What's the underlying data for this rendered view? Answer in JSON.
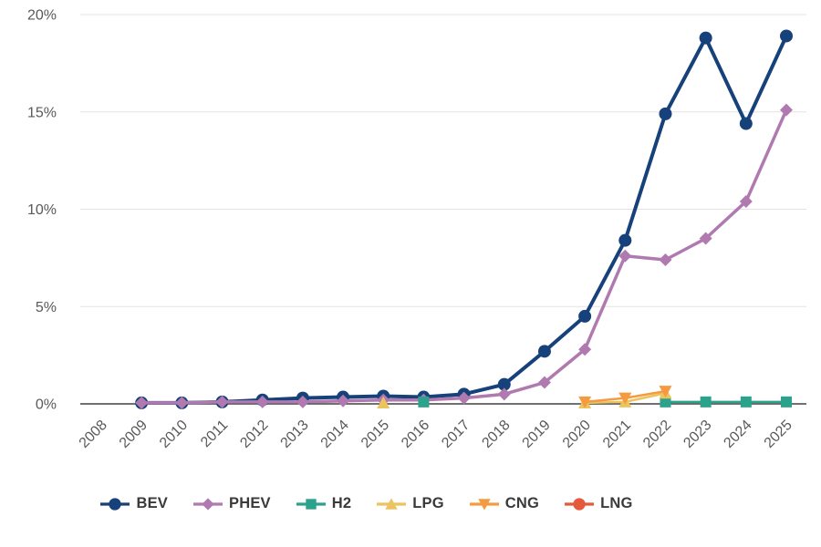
{
  "chart_data": {
    "type": "line",
    "title": "",
    "xlabel": "",
    "ylabel": "",
    "x_labels": [
      "2008",
      "2009",
      "2010",
      "2011",
      "2012",
      "2013",
      "2014",
      "2015",
      "2016",
      "2017",
      "2018",
      "2019",
      "2020",
      "2021",
      "2022",
      "2023",
      "2024",
      "2025"
    ],
    "y_ticks": [
      {
        "value": 0,
        "label": "0%"
      },
      {
        "value": 5,
        "label": "5%"
      },
      {
        "value": 10,
        "label": "10%"
      },
      {
        "value": 15,
        "label": "15%"
      },
      {
        "value": 20,
        "label": "20%"
      }
    ],
    "ylim": [
      0,
      20
    ],
    "grid": true,
    "legend_position": "bottom",
    "series": [
      {
        "name": "BEV",
        "color": "#17417a",
        "marker": "circle",
        "line_width": 4,
        "values": [
          null,
          0.05,
          0.05,
          0.1,
          0.2,
          0.3,
          0.35,
          0.4,
          0.35,
          0.5,
          1.0,
          2.7,
          4.5,
          8.4,
          14.9,
          18.8,
          14.4,
          18.9
        ]
      },
      {
        "name": "PHEV",
        "color": "#b07ab0",
        "marker": "diamond",
        "line_width": 3.5,
        "values": [
          null,
          0.05,
          0.05,
          0.1,
          0.1,
          0.1,
          0.15,
          0.2,
          0.2,
          0.3,
          0.5,
          1.1,
          2.8,
          7.6,
          7.4,
          8.5,
          10.4,
          15.1
        ]
      },
      {
        "name": "H2",
        "color": "#2aa28c",
        "marker": "square",
        "line_width": 2.5,
        "values": [
          null,
          null,
          null,
          null,
          null,
          null,
          null,
          null,
          0.1,
          null,
          null,
          null,
          null,
          null,
          0.1,
          0.1,
          0.1,
          0.1
        ]
      },
      {
        "name": "LPG",
        "color": "#ebc45e",
        "marker": "triangle-up",
        "line_width": 2.5,
        "values": [
          null,
          null,
          null,
          null,
          null,
          null,
          null,
          0.05,
          null,
          null,
          null,
          null,
          0.05,
          0.1,
          0.55,
          null,
          null,
          null
        ]
      },
      {
        "name": "CNG",
        "color": "#f59a40",
        "marker": "triangle-down",
        "line_width": 2.5,
        "values": [
          null,
          null,
          null,
          null,
          null,
          null,
          null,
          null,
          null,
          null,
          null,
          null,
          0.1,
          0.3,
          0.65,
          null,
          null,
          null
        ]
      },
      {
        "name": "LNG",
        "color": "#e45a3b",
        "marker": "circle",
        "line_width": 2.5,
        "values": [
          null,
          null,
          null,
          null,
          null,
          null,
          null,
          null,
          null,
          null,
          null,
          null,
          null,
          null,
          null,
          null,
          null,
          null
        ]
      }
    ],
    "colors": {
      "axis": "#404040",
      "grid": "#e3e3e3",
      "tick_labels": "#595959",
      "legend_text": "#3a3a3a",
      "background": "#ffffff"
    }
  }
}
